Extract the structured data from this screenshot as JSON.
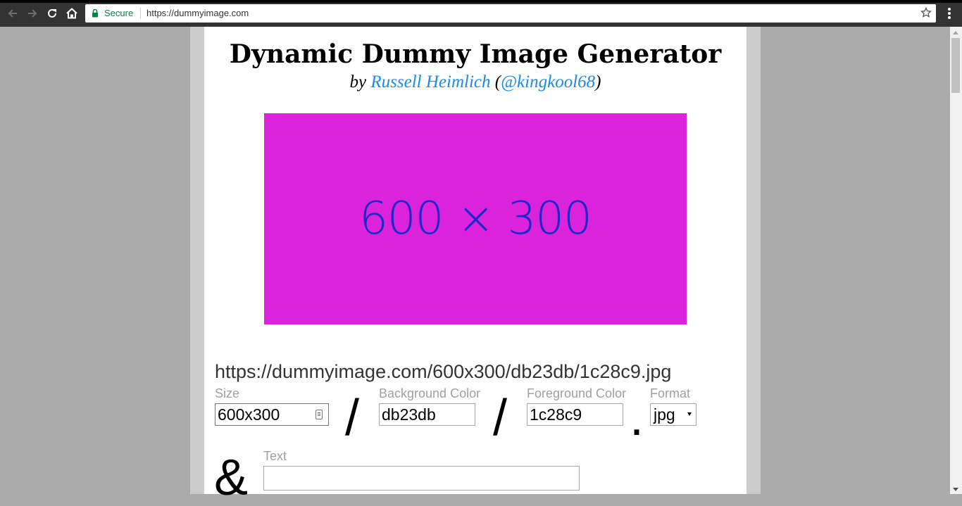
{
  "browser": {
    "secure_label": "Secure",
    "url": "https://dummyimage.com",
    "icons": [
      "back-icon",
      "forward-icon",
      "reload-icon",
      "home-icon",
      "lock-icon",
      "star-icon",
      "menu-icon"
    ]
  },
  "page": {
    "title": "Dynamic Dummy Image Generator",
    "byline_prefix": "by ",
    "author": "Russell Heimlich",
    "paren_open": " (",
    "handle": "@kingkool68",
    "paren_close": ")",
    "preview": {
      "text": "600 × 300",
      "background": "#db23db",
      "foreground": "#1c28c9"
    },
    "generated_url": "https://dummyimage.com/600x300/db23db/1c28c9.jpg",
    "form": {
      "size_label": "Size",
      "size_value": "600x300",
      "slash": "/",
      "bg_label": "Background Color",
      "bg_value": "db23db",
      "fg_label": "Foreground Color",
      "fg_value": "1c28c9",
      "dot": ".",
      "format_label": "Format",
      "format_value": "jpg",
      "ampersand": "&",
      "text_label": "Text",
      "text_value": ""
    }
  },
  "colors": {
    "link": "#1a8be8",
    "secure": "#0b8043",
    "label": "#a0a0a0"
  }
}
